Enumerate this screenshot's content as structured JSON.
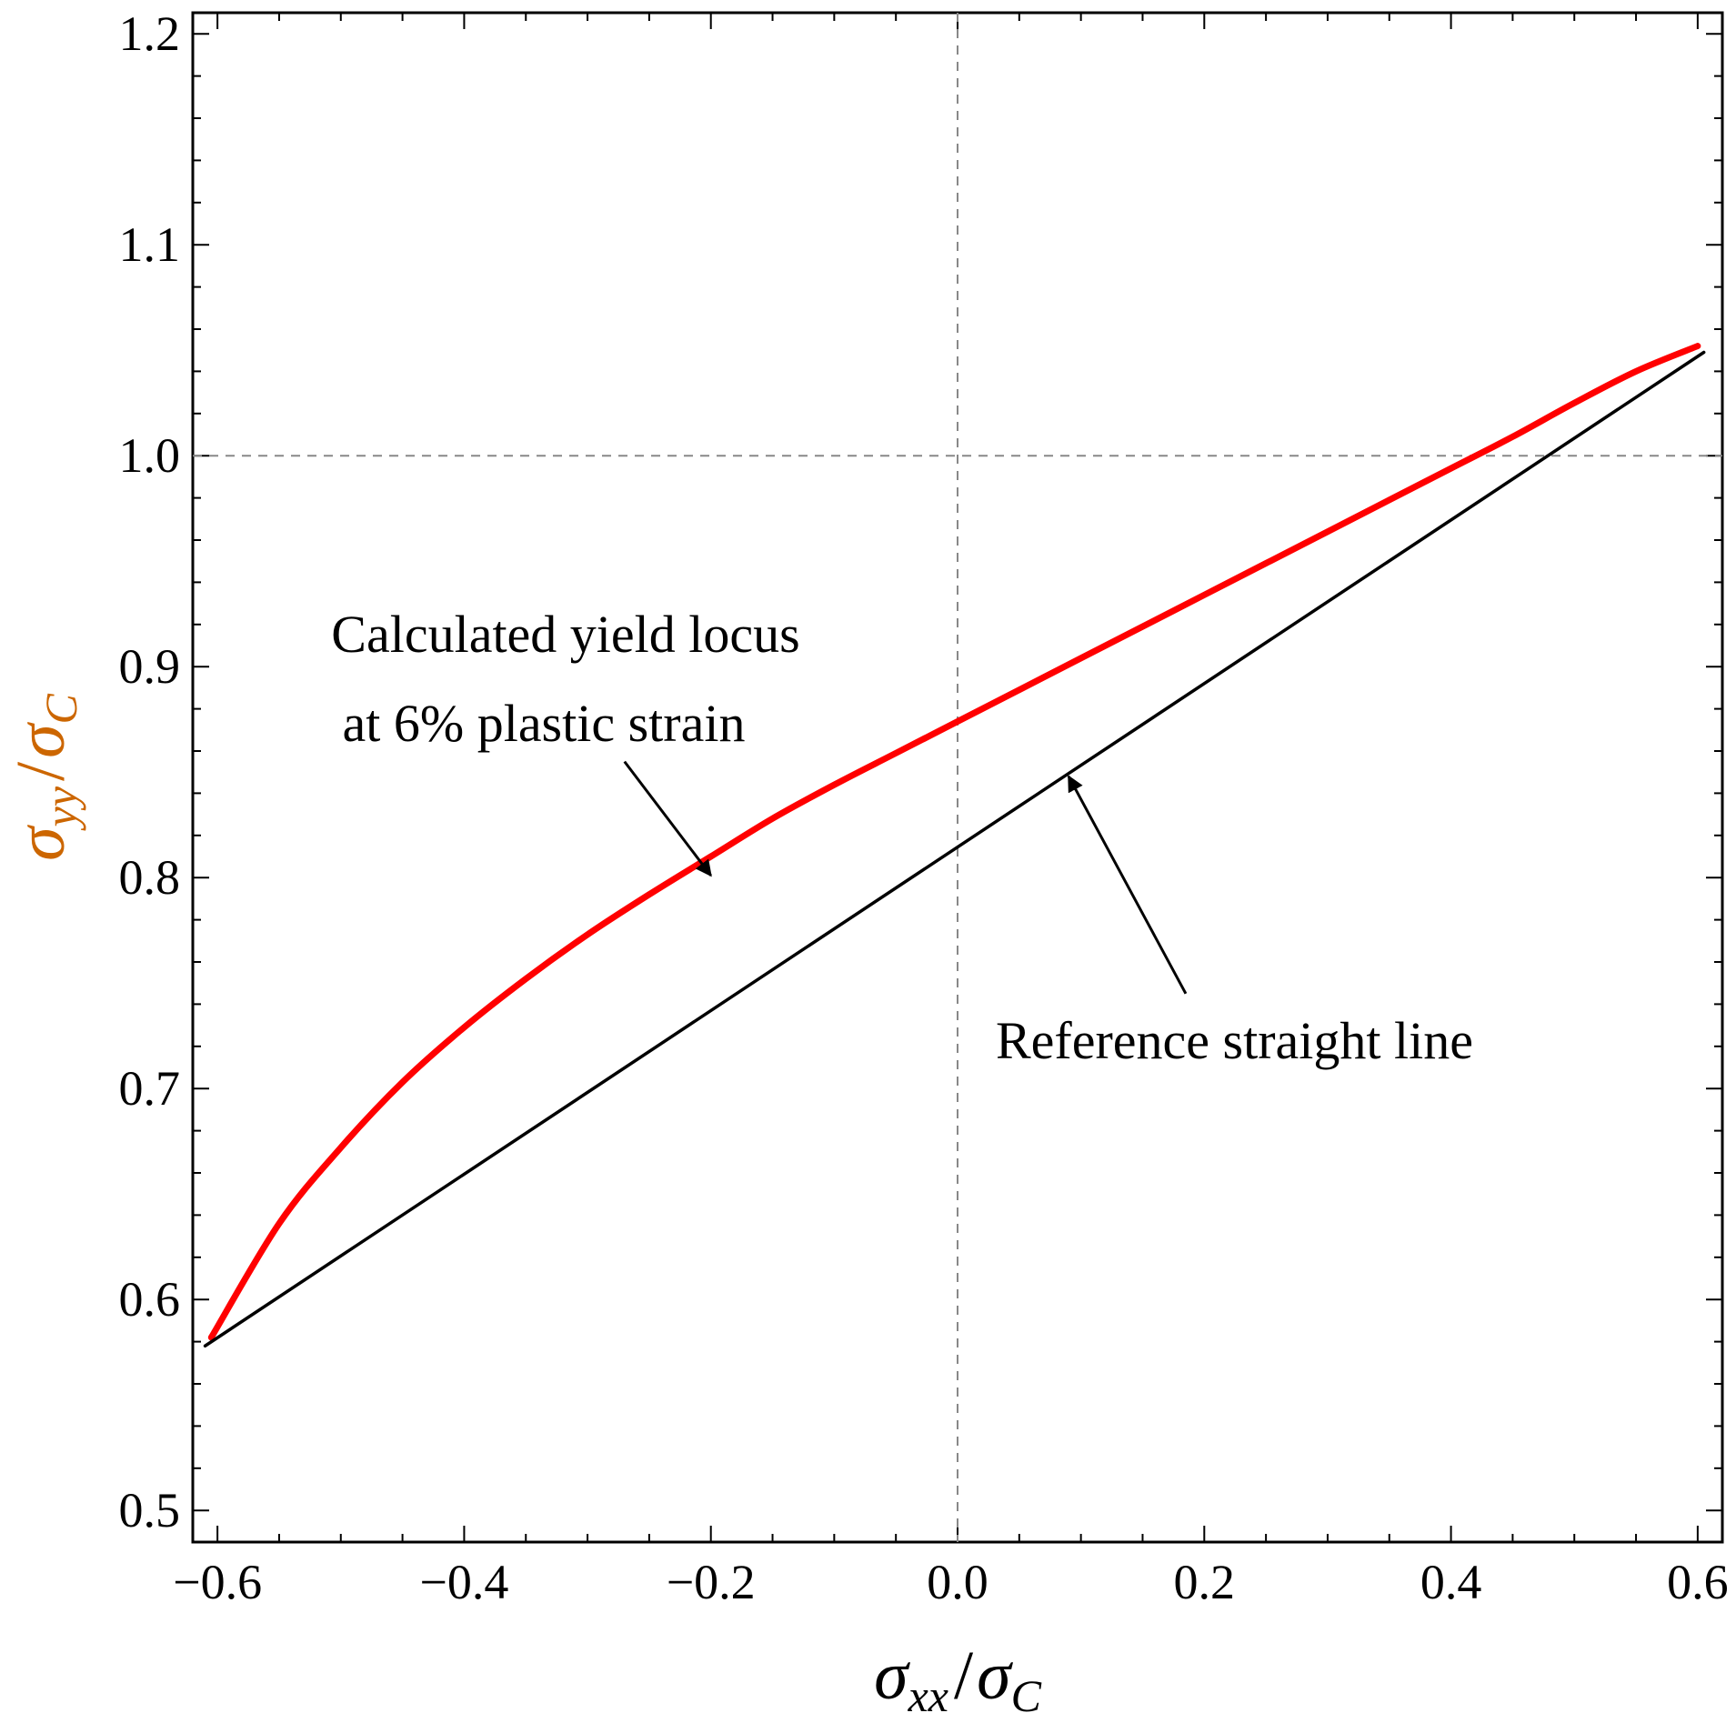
{
  "chart_data": {
    "type": "line",
    "title": "",
    "xlabel": {
      "sym": "σ",
      "sub": "xx",
      "slash": "/",
      "sym2": "σ",
      "sub2": "C"
    },
    "ylabel": {
      "sym": "σ",
      "sub": "yy",
      "slash": "/",
      "sym2": "σ",
      "sub2": "C"
    },
    "xlim": [
      -0.62,
      0.62
    ],
    "ylim": [
      0.485,
      1.21
    ],
    "xticks": [
      -0.6,
      -0.4,
      -0.2,
      0.0,
      0.2,
      0.4,
      0.6
    ],
    "xtick_labels": [
      "−0.6",
      "−0.4",
      "−0.2",
      "0.0",
      "0.2",
      "0.4",
      "0.6"
    ],
    "yticks": [
      0.5,
      0.6,
      0.7,
      0.8,
      0.9,
      1.0,
      1.1,
      1.2
    ],
    "ytick_labels": [
      "0.5",
      "0.6",
      "0.7",
      "0.8",
      "0.9",
      "1.0",
      "1.1",
      "1.2"
    ],
    "reference_lines": [
      {
        "orientation": "vertical",
        "x": 0.0,
        "style": "dashed"
      },
      {
        "orientation": "horizontal",
        "y": 1.0,
        "style": "dashed"
      }
    ],
    "series": [
      {
        "name": "Calculated yield locus at 6% plastic strain",
        "color": "#ff0000",
        "x": [
          -0.605,
          -0.55,
          -0.5,
          -0.45,
          -0.4,
          -0.35,
          -0.3,
          -0.25,
          -0.2,
          -0.15,
          -0.1,
          -0.05,
          0.0,
          0.05,
          0.1,
          0.15,
          0.2,
          0.25,
          0.3,
          0.35,
          0.4,
          0.45,
          0.5,
          0.55,
          0.6
        ],
        "y": [
          0.582,
          0.636,
          0.672,
          0.703,
          0.729,
          0.752,
          0.773,
          0.792,
          0.81,
          0.828,
          0.844,
          0.859,
          0.874,
          0.889,
          0.904,
          0.919,
          0.934,
          0.949,
          0.964,
          0.979,
          0.994,
          1.009,
          1.025,
          1.04,
          1.052
        ]
      },
      {
        "name": "Reference straight line",
        "color": "#000000",
        "x": [
          -0.61,
          0.605
        ],
        "y": [
          0.578,
          1.049
        ]
      }
    ],
    "annotations": [
      {
        "lines": [
          "Calculated yield locus",
          "at 6% plastic strain"
        ],
        "arrow_from": [
          -0.27,
          0.855
        ],
        "arrow_to": [
          -0.2,
          0.801
        ]
      },
      {
        "lines": [
          "Reference straight line"
        ],
        "arrow_from": [
          0.185,
          0.745
        ],
        "arrow_to": [
          0.09,
          0.848
        ]
      }
    ]
  }
}
